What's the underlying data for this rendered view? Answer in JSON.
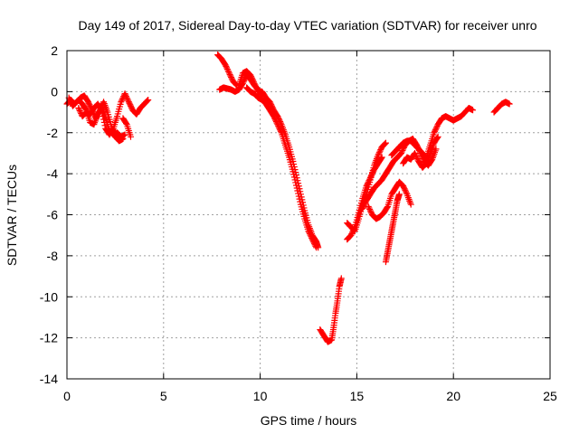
{
  "chart_data": {
    "type": "scatter",
    "title": "Day 149 of 2017, Sidereal Day-to-day VTEC variation (SDTVAR) for receiver unro",
    "xlabel": "GPS time / hours",
    "ylabel": "SDTVAR / TECUs",
    "xlim": [
      0,
      25
    ],
    "ylim": [
      -14,
      2
    ],
    "xticks": [
      0,
      5,
      10,
      15,
      20,
      25
    ],
    "yticks": [
      -14,
      -12,
      -10,
      -8,
      -6,
      -4,
      -2,
      0,
      2
    ],
    "grid": true,
    "marker": "plus",
    "color": "#ff0000",
    "series": [
      {
        "segments": [
          [
            [
              0.0,
              -0.6
            ],
            [
              0.2,
              -0.4
            ],
            [
              0.4,
              -0.6
            ],
            [
              0.6,
              -0.4
            ],
            [
              0.8,
              -0.6
            ],
            [
              1.0,
              -0.9
            ],
            [
              1.2,
              -1.5
            ],
            [
              1.4,
              -1.6
            ],
            [
              1.6,
              -1.1
            ],
            [
              1.8,
              -0.8
            ],
            [
              2.0,
              -1.3
            ],
            [
              2.2,
              -1.9
            ],
            [
              2.4,
              -2.1
            ],
            [
              2.6,
              -2.0
            ],
            [
              2.8,
              -2.2
            ],
            [
              3.0,
              -2.1
            ]
          ],
          [
            [
              0.1,
              -0.3
            ],
            [
              0.3,
              -0.7
            ],
            [
              0.5,
              -0.5
            ],
            [
              0.7,
              -0.3
            ],
            [
              0.9,
              -0.2
            ],
            [
              1.1,
              -0.5
            ],
            [
              1.3,
              -0.9
            ],
            [
              1.5,
              -1.3
            ],
            [
              1.7,
              -0.9
            ],
            [
              1.9,
              -0.5
            ],
            [
              2.1,
              -1.0
            ],
            [
              2.3,
              -1.7
            ],
            [
              2.5,
              -2.2
            ],
            [
              2.7,
              -2.4
            ],
            [
              2.9,
              -2.3
            ]
          ],
          [
            [
              0.6,
              -0.8
            ],
            [
              0.8,
              -1.2
            ],
            [
              1.0,
              -1.0
            ],
            [
              1.2,
              -1.1
            ],
            [
              1.4,
              -0.8
            ],
            [
              1.6,
              -0.6
            ],
            [
              1.8,
              -0.9
            ],
            [
              2.0,
              -1.8
            ],
            [
              2.2,
              -2.1
            ],
            [
              2.4,
              -1.8
            ],
            [
              2.6,
              -1.2
            ],
            [
              2.8,
              -0.5
            ],
            [
              3.0,
              -0.1
            ],
            [
              3.2,
              -0.5
            ],
            [
              3.4,
              -0.9
            ],
            [
              3.6,
              -1.1
            ],
            [
              3.8,
              -0.8
            ],
            [
              4.0,
              -0.6
            ],
            [
              4.2,
              -0.4
            ]
          ],
          [
            [
              2.9,
              -1.3
            ],
            [
              3.1,
              -1.6
            ],
            [
              3.3,
              -2.2
            ]
          ],
          [
            [
              7.9,
              0.1
            ],
            [
              8.1,
              0.2
            ],
            [
              8.3,
              0.15
            ],
            [
              8.5,
              0.1
            ],
            [
              8.7,
              0.0
            ],
            [
              8.9,
              0.1
            ],
            [
              9.1,
              0.4
            ],
            [
              9.3,
              0.8
            ],
            [
              9.5,
              0.6
            ],
            [
              9.7,
              0.3
            ],
            [
              9.9,
              0.1
            ],
            [
              10.1,
              -0.2
            ]
          ],
          [
            [
              7.8,
              1.8
            ],
            [
              8.0,
              1.6
            ],
            [
              8.2,
              1.3
            ],
            [
              8.4,
              0.9
            ],
            [
              8.6,
              0.5
            ],
            [
              8.8,
              0.3
            ]
          ],
          [
            [
              8.9,
              0.3
            ],
            [
              9.1,
              0.9
            ],
            [
              9.3,
              1.0
            ],
            [
              9.5,
              0.8
            ],
            [
              9.7,
              0.4
            ],
            [
              9.9,
              0.0
            ],
            [
              10.1,
              0.0
            ],
            [
              10.3,
              -0.3
            ],
            [
              10.5,
              -0.5
            ],
            [
              10.7,
              -0.9
            ],
            [
              10.9,
              -1.2
            ],
            [
              11.1,
              -1.6
            ],
            [
              11.3,
              -2.1
            ],
            [
              11.5,
              -2.7
            ],
            [
              11.7,
              -3.4
            ],
            [
              11.9,
              -4.2
            ],
            [
              12.1,
              -5.0
            ],
            [
              12.3,
              -5.8
            ],
            [
              12.5,
              -6.5
            ],
            [
              12.7,
              -7.0
            ],
            [
              12.9,
              -7.3
            ],
            [
              13.0,
              -7.6
            ]
          ],
          [
            [
              9.3,
              0.2
            ],
            [
              9.5,
              0.0
            ],
            [
              9.7,
              -0.1
            ],
            [
              9.9,
              -0.3
            ],
            [
              10.1,
              -0.4
            ],
            [
              10.3,
              -0.6
            ],
            [
              10.5,
              -0.9
            ],
            [
              10.7,
              -1.2
            ],
            [
              10.9,
              -1.6
            ],
            [
              11.1,
              -2.0
            ],
            [
              11.3,
              -2.6
            ],
            [
              11.5,
              -3.2
            ],
            [
              11.7,
              -3.9
            ],
            [
              11.9,
              -4.7
            ],
            [
              12.1,
              -5.5
            ],
            [
              12.3,
              -6.2
            ],
            [
              12.5,
              -6.8
            ],
            [
              12.7,
              -7.2
            ],
            [
              12.9,
              -7.6
            ]
          ],
          [
            [
              13.1,
              -11.6
            ],
            [
              13.3,
              -11.9
            ],
            [
              13.5,
              -12.2
            ],
            [
              13.7,
              -12.1
            ],
            [
              13.8,
              -11.5
            ],
            [
              13.9,
              -10.8
            ],
            [
              14.0,
              -10.2
            ],
            [
              14.1,
              -9.5
            ],
            [
              14.2,
              -9.1
            ]
          ],
          [
            [
              14.5,
              -6.4
            ],
            [
              14.7,
              -6.6
            ],
            [
              14.9,
              -6.8
            ],
            [
              15.1,
              -6.2
            ],
            [
              15.3,
              -5.5
            ],
            [
              15.5,
              -5.0
            ],
            [
              15.7,
              -4.3
            ],
            [
              15.9,
              -3.6
            ],
            [
              16.1,
              -3.1
            ],
            [
              16.3,
              -2.7
            ],
            [
              16.5,
              -2.5
            ]
          ],
          [
            [
              14.5,
              -7.2
            ],
            [
              14.7,
              -7.0
            ],
            [
              14.9,
              -6.6
            ],
            [
              15.1,
              -5.9
            ],
            [
              15.3,
              -5.2
            ],
            [
              15.5,
              -4.6
            ],
            [
              15.7,
              -4.2
            ],
            [
              15.9,
              -3.8
            ],
            [
              16.1,
              -3.5
            ],
            [
              16.3,
              -3.2
            ]
          ],
          [
            [
              15.3,
              -5.7
            ],
            [
              15.5,
              -5.3
            ],
            [
              15.7,
              -5.0
            ],
            [
              15.9,
              -4.7
            ],
            [
              16.1,
              -4.5
            ],
            [
              16.3,
              -4.3
            ],
            [
              16.5,
              -4.0
            ],
            [
              16.7,
              -3.7
            ],
            [
              16.9,
              -3.4
            ],
            [
              17.1,
              -3.2
            ],
            [
              17.3,
              -3.0
            ],
            [
              17.5,
              -2.6
            ],
            [
              17.7,
              -2.4
            ],
            [
              17.9,
              -2.3
            ],
            [
              18.1,
              -2.6
            ],
            [
              18.3,
              -3.0
            ],
            [
              18.5,
              -3.4
            ],
            [
              18.7,
              -3.6
            ],
            [
              18.9,
              -3.3
            ],
            [
              19.1,
              -2.8
            ]
          ],
          [
            [
              15.6,
              -5.6
            ],
            [
              15.8,
              -6.0
            ],
            [
              16.0,
              -6.2
            ],
            [
              16.2,
              -6.1
            ],
            [
              16.4,
              -5.9
            ],
            [
              16.6,
              -5.6
            ],
            [
              16.8,
              -5.0
            ],
            [
              17.0,
              -4.7
            ],
            [
              17.2,
              -4.4
            ],
            [
              17.4,
              -4.6
            ],
            [
              17.6,
              -5.0
            ],
            [
              17.8,
              -5.5
            ]
          ],
          [
            [
              16.5,
              -8.3
            ],
            [
              16.6,
              -7.8
            ],
            [
              16.7,
              -7.3
            ],
            [
              16.8,
              -6.8
            ],
            [
              16.9,
              -6.3
            ],
            [
              17.0,
              -5.8
            ],
            [
              17.1,
              -5.3
            ],
            [
              17.2,
              -5.0
            ]
          ],
          [
            [
              16.8,
              -3.1
            ],
            [
              17.0,
              -2.9
            ],
            [
              17.2,
              -2.7
            ],
            [
              17.4,
              -2.5
            ],
            [
              17.6,
              -2.4
            ],
            [
              17.8,
              -2.4
            ],
            [
              18.0,
              -2.6
            ],
            [
              18.2,
              -2.8
            ],
            [
              18.4,
              -3.0
            ],
            [
              18.6,
              -3.2
            ],
            [
              18.8,
              -2.6
            ],
            [
              19.0,
              -2.0
            ],
            [
              19.2,
              -1.6
            ],
            [
              19.4,
              -1.3
            ],
            [
              19.6,
              -1.2
            ],
            [
              19.8,
              -1.3
            ],
            [
              20.0,
              -1.4
            ],
            [
              20.2,
              -1.3
            ],
            [
              20.4,
              -1.2
            ],
            [
              20.6,
              -1.0
            ],
            [
              20.8,
              -0.8
            ],
            [
              21.0,
              -0.9
            ]
          ],
          [
            [
              17.4,
              -3.5
            ],
            [
              17.6,
              -3.2
            ],
            [
              17.8,
              -3.3
            ],
            [
              18.0,
              -3.0
            ],
            [
              18.2,
              -3.4
            ],
            [
              18.4,
              -3.7
            ],
            [
              18.6,
              -3.5
            ],
            [
              18.8,
              -3.0
            ],
            [
              19.0,
              -2.5
            ],
            [
              19.2,
              -2.2
            ]
          ],
          [
            [
              22.1,
              -1.0
            ],
            [
              22.3,
              -0.8
            ],
            [
              22.5,
              -0.6
            ],
            [
              22.7,
              -0.5
            ],
            [
              22.9,
              -0.6
            ]
          ]
        ]
      }
    ]
  }
}
